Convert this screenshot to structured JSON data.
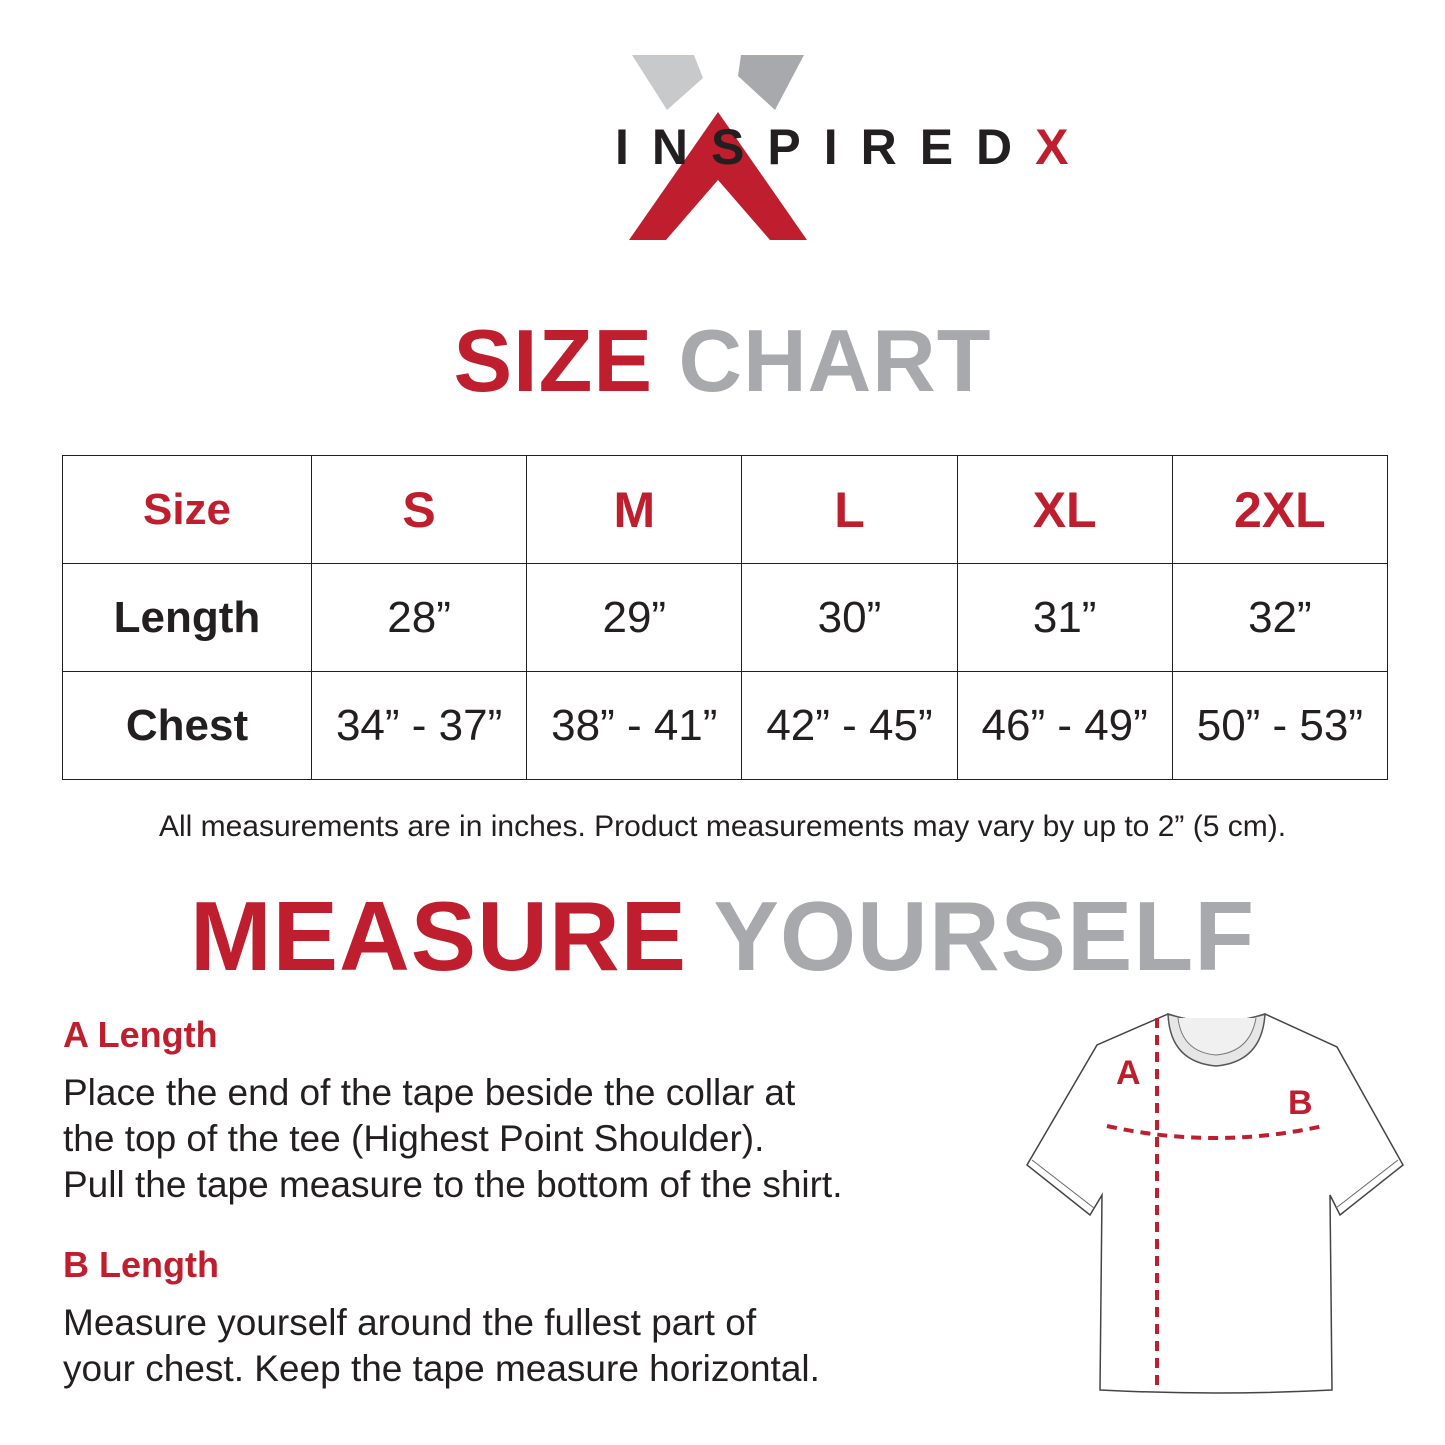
{
  "brand": {
    "name_main": "INSPIRED",
    "name_accent": "X",
    "colors": {
      "red": "#be1e2d",
      "light_gray": "#c8c9cb",
      "gray": "#a7a9ac"
    }
  },
  "size_chart": {
    "title_part1": "SIZE",
    "title_part2": "CHART",
    "header": [
      "Size",
      "S",
      "M",
      "L",
      "XL",
      "2XL"
    ],
    "rows": [
      {
        "label": "Length",
        "values": [
          "28”",
          "29”",
          "30”",
          "31”",
          "32”"
        ]
      },
      {
        "label": "Chest",
        "values": [
          "34” - 37”",
          "38” - 41”",
          "42” - 45”",
          "46” - 49”",
          "50” - 53”"
        ]
      }
    ],
    "note": "All measurements are in inches. Product measurements may vary by up to 2” (5 cm)."
  },
  "measure": {
    "title_part1": "MEASURE",
    "title_part2": "YOURSELF",
    "sections": [
      {
        "heading": "A Length",
        "lines": [
          "Place the end of the tape beside the collar at",
          "the top of the tee (Highest Point Shoulder).",
          "Pull the tape measure to the bottom of the shirt."
        ]
      },
      {
        "heading": "B Length",
        "lines": [
          "Measure yourself around the fullest part of",
          "your chest. Keep the tape measure horizontal."
        ]
      }
    ],
    "diagram_labels": {
      "a": "A",
      "b": "B"
    }
  }
}
